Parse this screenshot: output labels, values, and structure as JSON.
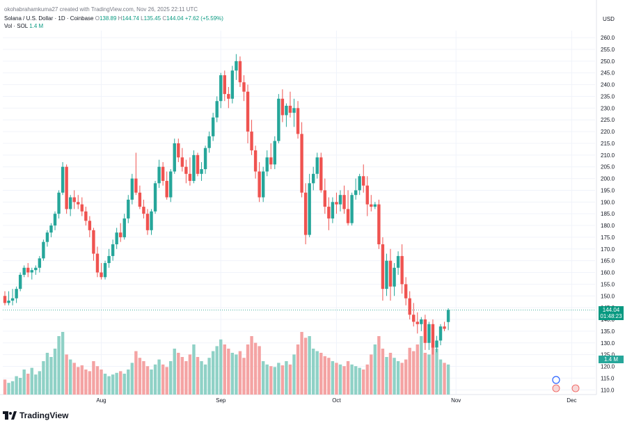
{
  "caption": "okohabrahamkuma27 created with TradingView.com, Nov 26, 2025 22:11 UTC",
  "header": {
    "symbol": "Solana / U.S. Dollar · 1D · Coinbase",
    "o_label": "O",
    "o_value": "138.89",
    "h_label": "H",
    "h_value": "144.74",
    "l_label": "L",
    "l_value": "135.45",
    "c_label": "C",
    "c_value": "144.04",
    "change": "+7.62 (+5.59%)",
    "vol_label": "Vol · SOL",
    "vol_value": "1.4 M"
  },
  "currency": "USD",
  "price_box": {
    "last": "144.04",
    "countdown": "01:48:23"
  },
  "volume_box": "1.4 M",
  "brand": "TradingView",
  "colors": {
    "up": "#26a69a",
    "down": "#ef5350",
    "up_vol": "#8fd1c6",
    "down_vol": "#f4a3a3",
    "grid": "#f0f3fa",
    "text": "#131722",
    "axis_text": "#787b86"
  },
  "chart_data": {
    "type": "candlestick",
    "title": "Solana / U.S. Dollar · 1D · Coinbase",
    "y_ticks": [
      110,
      115,
      120,
      125,
      130,
      135,
      140,
      145,
      150,
      155,
      160,
      165,
      170,
      175,
      180,
      185,
      190,
      195,
      200,
      205,
      210,
      215,
      220,
      225,
      230,
      235,
      240,
      245,
      250,
      255,
      260
    ],
    "ylim": [
      108,
      263
    ],
    "x_ticks": [
      {
        "label": "Aug",
        "index": 25
      },
      {
        "label": "Sep",
        "index": 56
      },
      {
        "label": "Oct",
        "index": 86
      },
      {
        "label": "Nov",
        "index": 117
      },
      {
        "label": "Dec",
        "index": 147
      }
    ],
    "last_price": 144.04,
    "ohlc": [
      [
        150,
        152,
        146,
        147
      ],
      [
        147,
        152,
        146,
        148
      ],
      [
        148,
        153,
        146,
        149
      ],
      [
        149,
        154,
        147,
        153
      ],
      [
        153,
        160,
        152,
        159
      ],
      [
        159,
        163,
        158,
        162
      ],
      [
        162,
        164,
        158,
        160
      ],
      [
        160,
        162,
        157,
        161
      ],
      [
        161,
        163,
        159,
        162
      ],
      [
        162,
        167,
        160,
        166
      ],
      [
        166,
        174,
        165,
        173
      ],
      [
        173,
        178,
        171,
        177
      ],
      [
        177,
        181,
        175,
        180
      ],
      [
        180,
        186,
        178,
        185
      ],
      [
        185,
        195,
        183,
        194
      ],
      [
        194,
        207,
        193,
        205
      ],
      [
        205,
        206,
        185,
        187
      ],
      [
        187,
        193,
        184,
        192
      ],
      [
        192,
        195,
        187,
        190
      ],
      [
        190,
        193,
        187,
        189
      ],
      [
        189,
        192,
        184,
        186
      ],
      [
        186,
        188,
        180,
        182
      ],
      [
        182,
        184,
        175,
        178
      ],
      [
        178,
        179,
        165,
        168
      ],
      [
        168,
        171,
        158,
        160
      ],
      [
        160,
        164,
        157,
        158
      ],
      [
        158,
        165,
        157,
        164
      ],
      [
        164,
        170,
        162,
        167
      ],
      [
        167,
        174,
        165,
        172
      ],
      [
        172,
        179,
        170,
        177
      ],
      [
        177,
        181,
        173,
        175
      ],
      [
        175,
        185,
        174,
        183
      ],
      [
        183,
        193,
        181,
        191
      ],
      [
        191,
        202,
        189,
        200
      ],
      [
        200,
        211,
        193,
        194
      ],
      [
        194,
        197,
        187,
        188
      ],
      [
        188,
        191,
        183,
        185
      ],
      [
        185,
        187,
        176,
        178
      ],
      [
        178,
        187,
        176,
        186
      ],
      [
        186,
        199,
        185,
        198
      ],
      [
        198,
        208,
        196,
        205
      ],
      [
        205,
        207,
        197,
        199
      ],
      [
        199,
        203,
        191,
        192
      ],
      [
        192,
        204,
        190,
        203
      ],
      [
        203,
        217,
        202,
        215
      ],
      [
        215,
        217,
        207,
        209
      ],
      [
        209,
        213,
        203,
        205
      ],
      [
        205,
        208,
        198,
        202
      ],
      [
        202,
        209,
        197,
        199
      ],
      [
        199,
        212,
        198,
        210
      ],
      [
        210,
        211,
        201,
        202
      ],
      [
        202,
        207,
        199,
        204
      ],
      [
        204,
        214,
        202,
        213
      ],
      [
        213,
        220,
        211,
        218
      ],
      [
        218,
        228,
        216,
        226
      ],
      [
        226,
        235,
        224,
        233
      ],
      [
        233,
        245,
        230,
        244
      ],
      [
        244,
        246,
        233,
        236
      ],
      [
        236,
        239,
        230,
        234
      ],
      [
        234,
        248,
        232,
        246
      ],
      [
        246,
        253,
        242,
        250
      ],
      [
        250,
        252,
        239,
        241
      ],
      [
        241,
        244,
        233,
        237
      ],
      [
        237,
        240,
        215,
        220
      ],
      [
        220,
        225,
        210,
        212
      ],
      [
        212,
        214,
        200,
        203
      ],
      [
        203,
        207,
        190,
        192
      ],
      [
        192,
        205,
        190,
        203
      ],
      [
        203,
        212,
        201,
        209
      ],
      [
        209,
        215,
        204,
        206
      ],
      [
        206,
        218,
        204,
        216
      ],
      [
        216,
        236,
        215,
        234
      ],
      [
        234,
        238,
        224,
        227
      ],
      [
        227,
        232,
        222,
        231
      ],
      [
        231,
        237,
        226,
        228
      ],
      [
        228,
        234,
        222,
        230
      ],
      [
        230,
        233,
        217,
        219
      ],
      [
        219,
        224,
        192,
        194
      ],
      [
        194,
        198,
        172,
        176
      ],
      [
        176,
        202,
        175,
        198
      ],
      [
        198,
        205,
        195,
        202
      ],
      [
        202,
        211,
        200,
        209
      ],
      [
        209,
        211,
        194,
        195
      ],
      [
        195,
        200,
        185,
        188
      ],
      [
        188,
        192,
        178,
        183
      ],
      [
        183,
        192,
        181,
        190
      ],
      [
        190,
        194,
        185,
        189
      ],
      [
        189,
        195,
        186,
        193
      ],
      [
        193,
        197,
        185,
        187
      ],
      [
        187,
        195,
        180,
        181
      ],
      [
        181,
        194,
        180,
        193
      ],
      [
        193,
        200,
        191,
        195
      ],
      [
        195,
        202,
        193,
        201
      ],
      [
        201,
        206,
        194,
        197
      ],
      [
        197,
        201,
        184,
        189
      ],
      [
        189,
        193,
        186,
        188
      ],
      [
        188,
        190,
        187,
        189
      ],
      [
        189,
        191,
        170,
        172
      ],
      [
        172,
        175,
        148,
        153
      ],
      [
        153,
        168,
        150,
        165
      ],
      [
        165,
        170,
        148,
        154
      ],
      [
        154,
        164,
        150,
        162
      ],
      [
        162,
        169,
        159,
        167
      ],
      [
        167,
        172,
        151,
        155
      ],
      [
        155,
        158,
        146,
        149
      ],
      [
        149,
        152,
        140,
        142
      ],
      [
        142,
        147,
        137,
        139
      ],
      [
        139,
        143,
        134,
        138
      ],
      [
        138,
        141,
        135,
        140
      ],
      [
        140,
        142,
        127,
        130
      ],
      [
        130,
        139,
        127,
        138
      ],
      [
        138,
        140,
        125,
        128
      ],
      [
        128,
        133,
        126,
        131
      ],
      [
        131,
        138,
        129,
        137
      ],
      [
        137,
        139,
        135,
        136
      ],
      [
        138.89,
        144.74,
        135.45,
        144.04
      ]
    ],
    "volume_scale_max": 100,
    "volume": [
      18,
      14,
      16,
      22,
      20,
      30,
      25,
      32,
      24,
      28,
      40,
      50,
      45,
      55,
      70,
      75,
      48,
      42,
      38,
      33,
      35,
      30,
      28,
      40,
      34,
      30,
      25,
      22,
      24,
      26,
      28,
      25,
      30,
      38,
      52,
      44,
      40,
      34,
      30,
      36,
      42,
      36,
      33,
      40,
      55,
      50,
      45,
      40,
      48,
      60,
      45,
      40,
      36,
      44,
      52,
      58,
      66,
      60,
      55,
      50,
      48,
      52,
      44,
      60,
      70,
      62,
      58,
      40,
      36,
      34,
      33,
      38,
      35,
      40,
      36,
      48,
      60,
      75,
      68,
      70,
      55,
      52,
      50,
      46,
      44,
      40,
      38,
      36,
      34,
      40,
      36,
      34,
      32,
      30,
      36,
      48,
      60,
      70,
      55,
      45,
      50,
      44,
      40,
      38,
      42,
      56,
      52,
      60,
      70,
      50,
      48,
      64,
      55,
      42,
      38,
      36
    ]
  }
}
